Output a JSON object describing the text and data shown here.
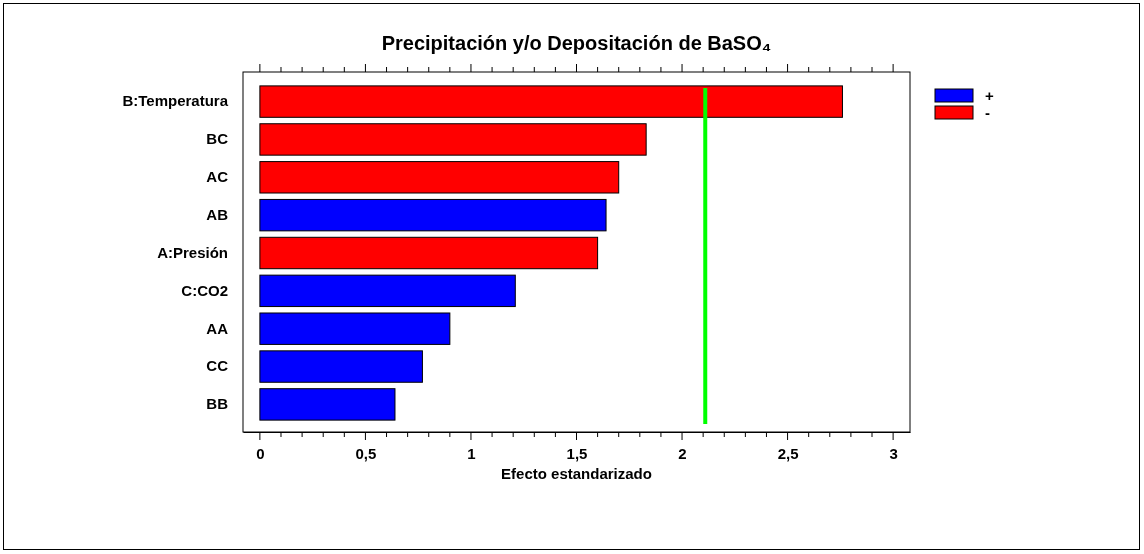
{
  "chart_data": {
    "type": "bar",
    "orientation": "horizontal",
    "title": "Precipitación y/o Depositación de BaSO₄",
    "xlabel": "Efecto estandarizado",
    "categories": [
      "B:Temperatura",
      "BC",
      "AC",
      "AB",
      "A:Presión",
      "C:CO2",
      "AA",
      "CC",
      "BB"
    ],
    "series": [
      {
        "name": "+",
        "color": "#0000ff",
        "values": [
          null,
          null,
          null,
          1.64,
          null,
          1.21,
          0.9,
          0.77,
          0.64
        ]
      },
      {
        "name": "-",
        "color": "#ff0000",
        "values": [
          2.76,
          1.83,
          1.7,
          null,
          1.6,
          null,
          null,
          null,
          null
        ]
      }
    ],
    "xlim": [
      -0.08,
      3.08
    ],
    "xticks": [
      0,
      {
        "value": 0.1,
        "label": null
      },
      {
        "value": 0.2,
        "label": null
      },
      {
        "value": 0.3,
        "label": null
      },
      {
        "value": 0.4,
        "label": null
      },
      {
        "value": 0.5,
        "label": "0,5"
      },
      {
        "value": 0.6,
        "label": null
      },
      {
        "value": 0.7,
        "label": null
      },
      {
        "value": 0.8,
        "label": null
      },
      {
        "value": 0.9,
        "label": null
      },
      1,
      {
        "value": 1.1,
        "label": null
      },
      {
        "value": 1.2,
        "label": null
      },
      {
        "value": 1.3,
        "label": null
      },
      {
        "value": 1.4,
        "label": null
      },
      {
        "value": 1.5,
        "label": "1,5"
      },
      {
        "value": 1.6,
        "label": null
      },
      {
        "value": 1.7,
        "label": null
      },
      {
        "value": 1.8,
        "label": null
      },
      {
        "value": 1.9,
        "label": null
      },
      2,
      {
        "value": 2.1,
        "label": null
      },
      {
        "value": 2.2,
        "label": null
      },
      {
        "value": 2.3,
        "label": null
      },
      {
        "value": 2.4,
        "label": null
      },
      {
        "value": 2.5,
        "label": "2,5"
      },
      {
        "value": 2.6,
        "label": null
      },
      {
        "value": 2.7,
        "label": null
      },
      {
        "value": 2.8,
        "label": null
      },
      {
        "value": 2.9,
        "label": null
      },
      3
    ],
    "ref_lines": [
      {
        "axis": "x",
        "value": 2.11,
        "color": "#00ff00"
      }
    ],
    "grid": false,
    "legend": "top right"
  }
}
